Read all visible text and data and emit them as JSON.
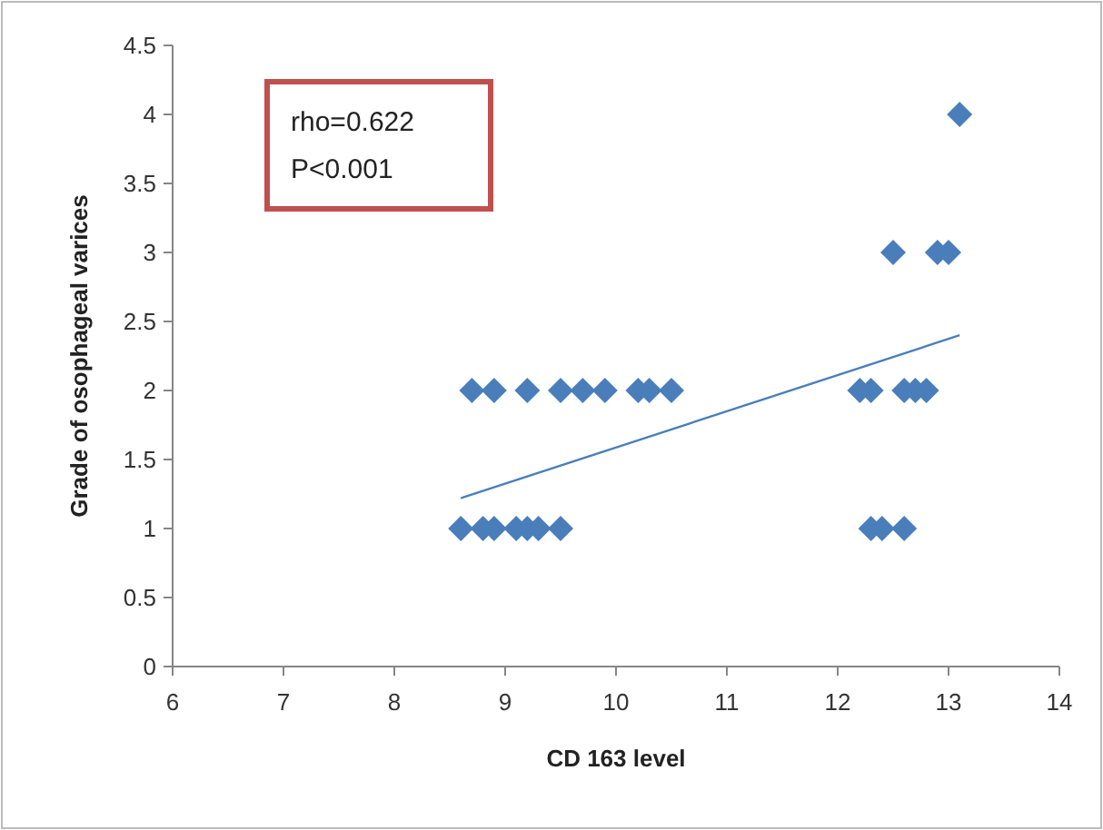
{
  "chart_data": {
    "type": "scatter",
    "xlabel": "CD 163 level",
    "ylabel": "Grade of osophageal varices",
    "xlim": [
      6,
      14
    ],
    "xticks": [
      6,
      7,
      8,
      9,
      10,
      11,
      12,
      13,
      14
    ],
    "ylim": [
      0,
      4.5
    ],
    "yticks": [
      0,
      0.5,
      1,
      1.5,
      2,
      2.5,
      3,
      3.5,
      4,
      4.5
    ],
    "marker": "diamond",
    "grid": false,
    "annotations": [
      "rho=0.622\nP<0.001"
    ],
    "series": [
      {
        "color": "#4a7ebb",
        "x": [
          8.7,
          8.9,
          9.2,
          9.5,
          9.7,
          9.9,
          10.2,
          10.3,
          10.5,
          8.6,
          8.8,
          8.9,
          9.1,
          9.2,
          9.3,
          9.5,
          12.2,
          12.3,
          12.6,
          12.7,
          12.8,
          12.3,
          12.4,
          12.6,
          12.5,
          12.9,
          13.0,
          13.1
        ],
        "values": [
          2,
          2,
          2,
          2,
          2,
          2,
          2,
          2,
          2,
          1,
          1,
          1,
          1,
          1,
          1,
          1,
          2,
          2,
          2,
          2,
          2,
          1,
          1,
          1,
          3,
          3,
          3,
          4
        ]
      },
      {
        "type": "line",
        "color": "#4a7ebb",
        "marker": "none",
        "x": [
          8.6,
          13.1
        ],
        "values": [
          1.22,
          2.4
        ]
      }
    ]
  }
}
